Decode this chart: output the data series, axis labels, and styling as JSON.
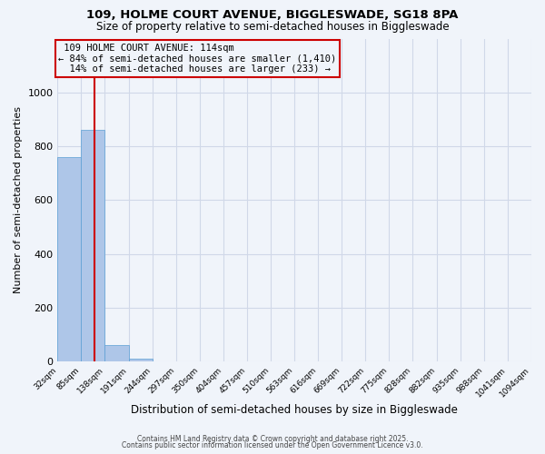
{
  "title_line1": "109, HOLME COURT AVENUE, BIGGLESWADE, SG18 8PA",
  "title_line2": "Size of property relative to semi-detached houses in Biggleswade",
  "bar_values": [
    760,
    860,
    60,
    10,
    0,
    0,
    0,
    0,
    0,
    0,
    0,
    0,
    0,
    0,
    0,
    0,
    0,
    0,
    0,
    0
  ],
  "bin_edges": [
    32,
    85,
    138,
    191,
    244,
    297,
    350,
    404,
    457,
    510,
    563,
    616,
    669,
    722,
    775,
    828,
    882,
    935,
    988,
    1041,
    1094
  ],
  "x_tick_labels": [
    "32sqm",
    "85sqm",
    "138sqm",
    "191sqm",
    "244sqm",
    "297sqm",
    "350sqm",
    "404sqm",
    "457sqm",
    "510sqm",
    "563sqm",
    "616sqm",
    "669sqm",
    "722sqm",
    "775sqm",
    "828sqm",
    "882sqm",
    "935sqm",
    "988sqm",
    "1041sqm",
    "1094sqm"
  ],
  "ylabel": "Number of semi-detached properties",
  "xlabel": "Distribution of semi-detached houses by size in Biggleswade",
  "ylim": [
    0,
    1200
  ],
  "yticks": [
    0,
    200,
    400,
    600,
    800,
    1000
  ],
  "property_size": 114,
  "property_label": "109 HOLME COURT AVENUE: 114sqm",
  "pct_smaller": 84,
  "pct_smaller_count": "1,410",
  "pct_larger": 14,
  "pct_larger_count": 233,
  "bar_color": "#aec6e8",
  "bar_edgecolor": "#5a9fd4",
  "vline_color": "#cc0000",
  "annotation_box_edgecolor": "#cc0000",
  "grid_color": "#d0d8e8",
  "bg_color": "#f0f4fa",
  "footer_line1": "Contains HM Land Registry data © Crown copyright and database right 2025.",
  "footer_line2": "Contains public sector information licensed under the Open Government Licence v3.0."
}
